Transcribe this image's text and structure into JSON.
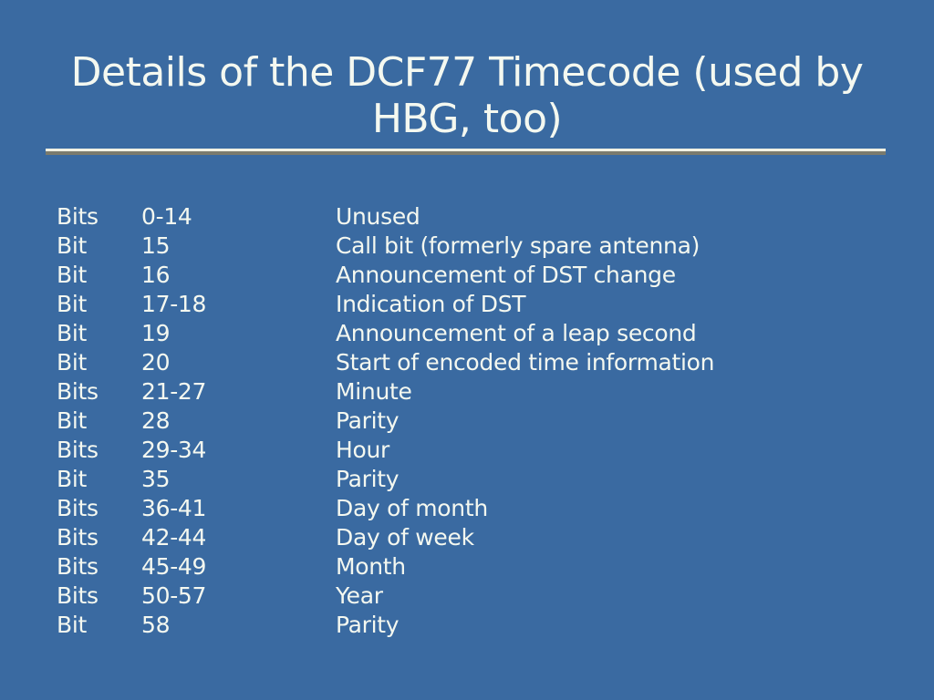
{
  "slide": {
    "title": "Details of the DCF77 Timecode (used by HBG, too)",
    "title_lines": [
      "Details of the DCF77 Timecode (used by",
      "HBG, too)"
    ],
    "colors": {
      "background": "#3a6aa1",
      "text": "#f4f8f0",
      "rule_top": "#f2f1e3",
      "rule_bottom": "#7b7b6d"
    },
    "table": {
      "rows": [
        {
          "label": "Bits",
          "range": "0-14",
          "description": "Unused"
        },
        {
          "label": "Bit",
          "range": "15",
          "description": "Call bit (formerly spare antenna)"
        },
        {
          "label": "Bit",
          "range": "16",
          "description": "Announcement of DST change"
        },
        {
          "label": "Bit",
          "range": "17-18",
          "description": "Indication of DST"
        },
        {
          "label": "Bit",
          "range": "19",
          "description": "Announcement of a leap second"
        },
        {
          "label": "Bit",
          "range": "20",
          "description": "Start of encoded time information"
        },
        {
          "label": "Bits",
          "range": "21-27",
          "description": "Minute"
        },
        {
          "label": "Bit",
          "range": "28",
          "description": "Parity"
        },
        {
          "label": "Bits",
          "range": "29-34",
          "description": "Hour"
        },
        {
          "label": "Bit",
          "range": "35",
          "description": "Parity"
        },
        {
          "label": "Bits",
          "range": "36-41",
          "description": "Day of month"
        },
        {
          "label": "Bits",
          "range": "42-44",
          "description": "Day of week"
        },
        {
          "label": "Bits",
          "range": "45-49",
          "description": "Month"
        },
        {
          "label": "Bits",
          "range": "50-57",
          "description": "Year"
        },
        {
          "label": "Bit",
          "range": "58",
          "description": "Parity"
        }
      ]
    }
  }
}
